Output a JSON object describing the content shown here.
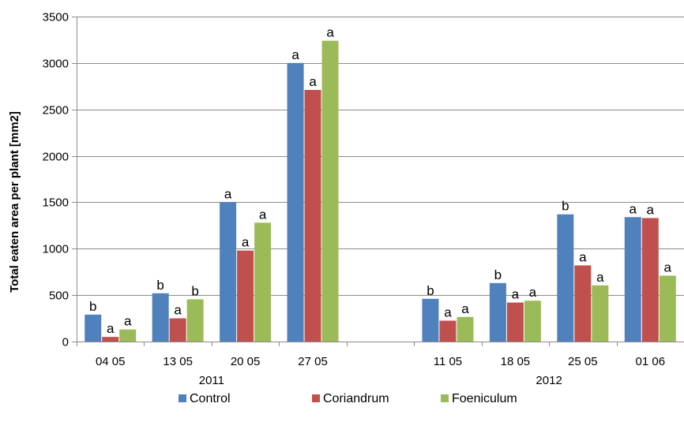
{
  "chart_data": {
    "type": "bar",
    "ylabel": "Total eaten area per plant [mm2]",
    "ylim": [
      0,
      3500
    ],
    "yticks": [
      0,
      500,
      1000,
      1500,
      2000,
      2500,
      3000,
      3500
    ],
    "grid": true,
    "legend_position": "bottom",
    "categories": [
      "04 05",
      "13 05",
      "20  05",
      "27 05",
      "",
      "11 05",
      "18 05",
      "25 05",
      "01 06"
    ],
    "groups": [
      {
        "label": "2011",
        "categories": [
          "04 05",
          "13 05",
          "20  05",
          "27 05"
        ]
      },
      {
        "label": "2012",
        "categories": [
          "11 05",
          "18 05",
          "25 05",
          "01 06"
        ]
      }
    ],
    "series": [
      {
        "name": "Control",
        "color": "#4F81BD",
        "values": [
          290,
          520,
          1500,
          3000,
          null,
          460,
          630,
          1370,
          1340
        ],
        "labels": [
          "b",
          "b",
          "a",
          "a",
          null,
          "b",
          "b",
          "b",
          "a"
        ]
      },
      {
        "name": "Coriandrum",
        "color": "#C0504D",
        "values": [
          50,
          250,
          980,
          2710,
          null,
          225,
          420,
          820,
          1330
        ],
        "labels": [
          "a",
          "a",
          "a",
          "a",
          null,
          "a",
          "a",
          "a",
          "a"
        ]
      },
      {
        "name": "Foeniculum",
        "color": "#9BBB59",
        "values": [
          130,
          455,
          1280,
          3240,
          null,
          265,
          440,
          605,
          710
        ],
        "labels": [
          "a",
          "b",
          "a",
          "a",
          null,
          "a",
          "a",
          "a",
          "a"
        ]
      }
    ]
  }
}
